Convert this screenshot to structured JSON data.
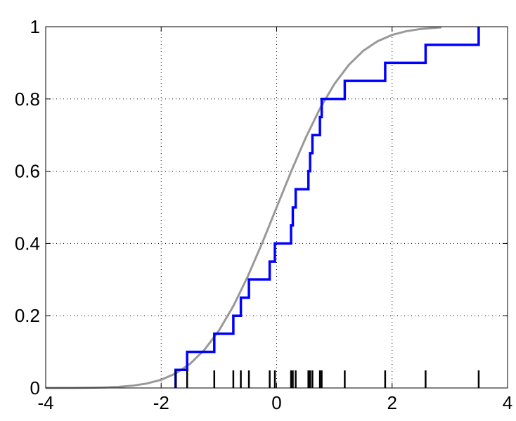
{
  "chart_data": {
    "type": "line",
    "xlim": [
      -4,
      4
    ],
    "ylim": [
      0,
      1
    ],
    "grid": true,
    "x_ticks": [
      -4,
      -2,
      0,
      2,
      4
    ],
    "y_ticks": [
      0,
      0.2,
      0.4,
      0.6,
      0.8,
      1
    ],
    "x_tick_labels": [
      "-4",
      "-2",
      "0",
      "2",
      "4"
    ],
    "y_tick_labels": [
      "0",
      "0.2",
      "0.4",
      "0.6",
      "0.8",
      "1"
    ],
    "colors": {
      "empirical": "#0000ff",
      "theoretical": "#999999",
      "rug": "#000000",
      "grid": "#000000",
      "axes": "#000000"
    },
    "series": [
      {
        "kind": "step",
        "x": [
          -1.75,
          -1.55,
          -1.08,
          -0.75,
          -0.62,
          -0.48,
          -0.12,
          -0.03,
          0.25,
          0.28,
          0.33,
          0.55,
          0.58,
          0.62,
          0.75,
          0.78,
          1.18,
          1.88,
          2.58,
          3.5
        ],
        "y": [
          0.05,
          0.1,
          0.15,
          0.2,
          0.25,
          0.3,
          0.35,
          0.4,
          0.45,
          0.5,
          0.55,
          0.6,
          0.65,
          0.7,
          0.75,
          0.8,
          0.85,
          0.9,
          0.95,
          1.0
        ]
      },
      {
        "kind": "curve",
        "x": [
          -4,
          -3.5,
          -3,
          -2.75,
          -2.5,
          -2.25,
          -2,
          -1.75,
          -1.5,
          -1.25,
          -1,
          -0.75,
          -0.5,
          -0.25,
          0,
          0.25,
          0.5,
          0.75,
          1,
          1.25,
          1.5,
          1.75,
          2,
          2.25,
          2.5,
          2.75,
          2.85
        ],
        "y": [
          3e-05,
          0.00023,
          0.00135,
          0.003,
          0.0062,
          0.0122,
          0.0228,
          0.0401,
          0.0668,
          0.1056,
          0.1587,
          0.2266,
          0.3085,
          0.4013,
          0.5,
          0.5987,
          0.6915,
          0.7734,
          0.8413,
          0.8944,
          0.9332,
          0.9599,
          0.9772,
          0.9878,
          0.9938,
          0.997,
          0.998
        ]
      }
    ],
    "rug_x": [
      -1.75,
      -1.55,
      -1.08,
      -0.75,
      -0.62,
      -0.48,
      -0.12,
      -0.03,
      0.25,
      0.28,
      0.33,
      0.55,
      0.58,
      0.62,
      0.75,
      0.78,
      1.18,
      1.88,
      2.58,
      3.5
    ]
  }
}
